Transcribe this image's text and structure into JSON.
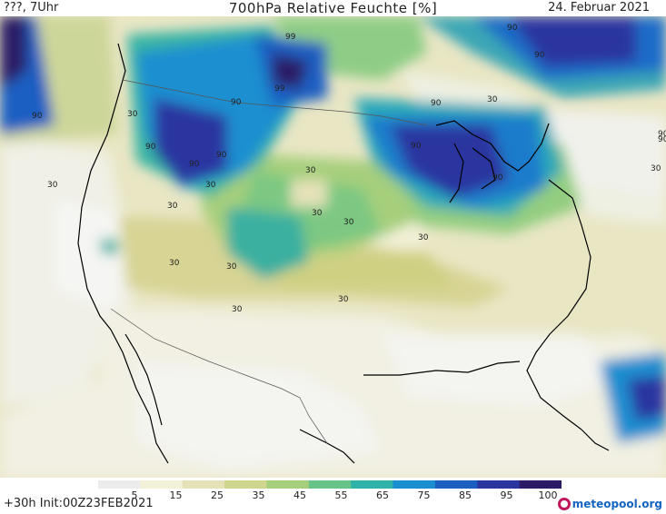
{
  "header": {
    "left": "???, 7Uhr",
    "title": "700hPa Relative Feuchte [%]",
    "date": "24. Februar 2021"
  },
  "map": {
    "region": "North America",
    "contour_labels": [
      "90",
      "99",
      "90",
      "99",
      "90",
      "90",
      "90",
      "90",
      "90",
      "90",
      "90",
      "30",
      "90",
      "90",
      "30",
      "30",
      "30",
      "30",
      "30",
      "30",
      "30",
      "30",
      "30",
      "30",
      "30",
      "30",
      "30",
      "90"
    ]
  },
  "colorbar": {
    "ticks": [
      "5",
      "15",
      "25",
      "35",
      "45",
      "55",
      "65",
      "75",
      "85",
      "95",
      "100"
    ],
    "colors": [
      "#ececec",
      "#f3f2d9",
      "#e5e2b8",
      "#cfd58d",
      "#a6cf7b",
      "#67c488",
      "#2fb3a8",
      "#1a8fd0",
      "#1c5fc2",
      "#2a35a0",
      "#2b1a66"
    ]
  },
  "footer": {
    "run_info": "+30h Init:00Z23FEB2021",
    "logo_brand": "meteopool",
    "logo_tld": ".org"
  }
}
